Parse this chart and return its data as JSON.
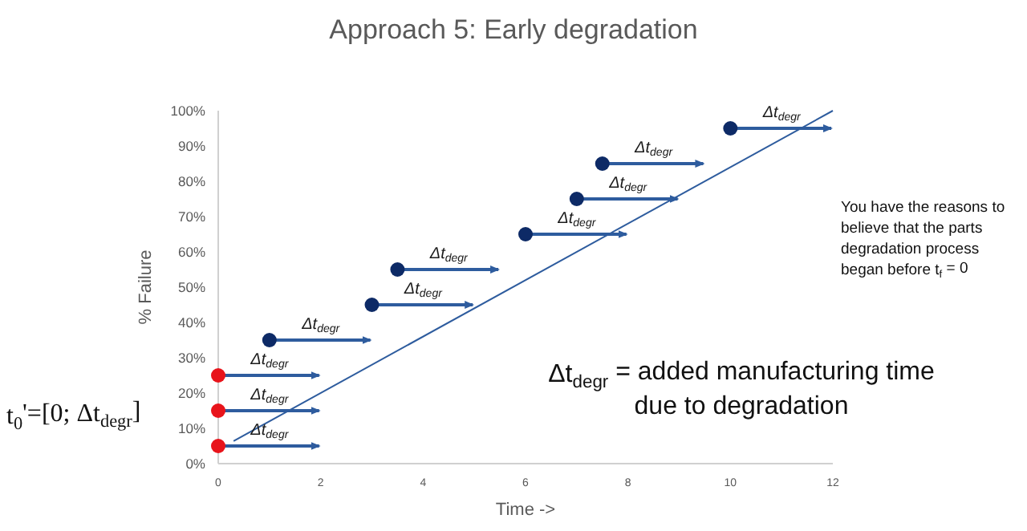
{
  "chart_data": {
    "type": "scatter",
    "title": "Approach 5: Early degradation",
    "xlabel": "Time ->",
    "ylabel": "% Failure",
    "xlim": [
      0,
      12
    ],
    "xticks": [
      0,
      2,
      4,
      6,
      8,
      10,
      12
    ],
    "ylim": [
      0,
      100
    ],
    "yticks": [
      {
        "value": 0,
        "label": "0%"
      },
      {
        "value": 10,
        "label": "10%"
      },
      {
        "value": 20,
        "label": "20%"
      },
      {
        "value": 30,
        "label": "30%"
      },
      {
        "value": 40,
        "label": "40%"
      },
      {
        "value": 50,
        "label": "50%"
      },
      {
        "value": 60,
        "label": "60%"
      },
      {
        "value": 70,
        "label": "70%"
      },
      {
        "value": 80,
        "label": "80%"
      },
      {
        "value": 90,
        "label": "90%"
      },
      {
        "value": 100,
        "label": "100%"
      }
    ],
    "grid": false,
    "marker": "circle",
    "series": [
      {
        "type": "line",
        "marker": "none",
        "color": "#2e5c9e",
        "x": [
          0.3,
          12
        ],
        "values": [
          6.4,
          100
        ]
      },
      {
        "color": "#e8141b",
        "x": [
          0,
          0,
          0
        ],
        "values": [
          5,
          15,
          25
        ],
        "xerrors": [
          [
            0,
            2
          ],
          [
            0,
            2
          ],
          [
            0,
            2
          ]
        ]
      },
      {
        "color": "#0d2a66",
        "x": [
          1,
          3,
          3.5,
          6,
          7,
          7.5,
          10
        ],
        "values": [
          35,
          45,
          55,
          65,
          75,
          85,
          95
        ],
        "xerrors": [
          [
            1,
            3
          ],
          [
            3,
            5
          ],
          [
            3.5,
            5.5
          ],
          [
            6,
            8
          ],
          [
            7,
            9
          ],
          [
            7.5,
            9.5
          ],
          [
            10,
            12
          ]
        ]
      }
    ],
    "annotations": [
      {
        "text": "Δt$_{degr}$",
        "x": 1,
        "y": 5
      },
      {
        "text": "Δt$_{degr}$",
        "x": 1,
        "y": 15
      },
      {
        "text": "Δt$_{degr}$",
        "x": 1,
        "y": 25
      },
      {
        "text": "Δt$_{degr}$",
        "x": 2,
        "y": 35
      },
      {
        "text": "Δt$_{degr}$",
        "x": 4,
        "y": 45
      },
      {
        "text": "Δt$_{degr}$",
        "x": 4.5,
        "y": 55
      },
      {
        "text": "Δt$_{degr}$",
        "x": 7,
        "y": 65
      },
      {
        "text": "Δt$_{degr}$",
        "x": 8,
        "y": 75
      },
      {
        "text": "Δt$_{degr}$",
        "x": 8.5,
        "y": 85
      },
      {
        "text": "Δt$_{degr}$",
        "x": 11,
        "y": 95
      },
      "t$_{0}$'=[0;  Δt$_{degr}$]",
      "Δt$_{degr}$ = added manufacturing time\ndue to degradation",
      "You have the reasons to\nbelieve that the parts\ndegradation process\nbegan before t$_{f}$ = 0"
    ]
  }
}
